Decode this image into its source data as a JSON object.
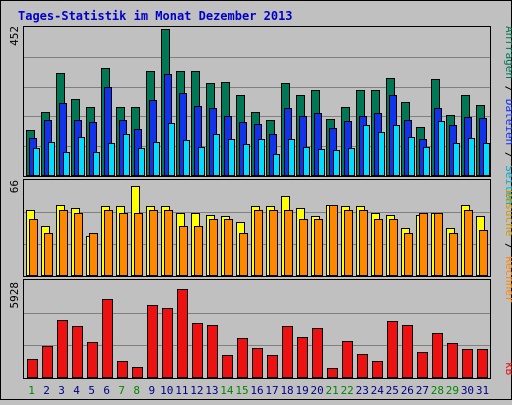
{
  "title": "Tages-Statistik im Monat Dezember 2013",
  "right_labels": {
    "anfragen": "Anfragen",
    "dateien": "Dateien",
    "seiten": "Seiten",
    "besuche": "Besuche",
    "rechner": "Rechner",
    "kb": "kB",
    "sep": " / "
  },
  "colors": {
    "background": "#c0c0c0",
    "title": "#0000cc",
    "anfragen": "#007755",
    "dateien": "#1133ee",
    "seiten": "#00ddff",
    "besuche": "#ffff00",
    "rechner": "#ff8800",
    "kb": "#ee1111",
    "weekend_label": "#008800",
    "weekday_label": "#000088"
  },
  "chart_data": [
    {
      "type": "bar",
      "title": "Tages-Statistik im Monat Dezember 2013",
      "panel": "top",
      "y_tick_label": "452",
      "ylim": [
        0,
        452
      ],
      "categories": [
        "1",
        "2",
        "3",
        "4",
        "5",
        "6",
        "7",
        "8",
        "9",
        "10",
        "11",
        "12",
        "13",
        "14",
        "15",
        "16",
        "17",
        "18",
        "19",
        "20",
        "21",
        "22",
        "23",
        "24",
        "25",
        "26",
        "27",
        "28",
        "29",
        "30",
        "31"
      ],
      "weekend_days": [
        "1",
        "7",
        "8",
        "14",
        "15",
        "21",
        "22",
        "28",
        "29"
      ],
      "series": [
        {
          "name": "Anfragen",
          "color": "#007755",
          "values": [
            140,
            196,
            318,
            236,
            212,
            332,
            212,
            212,
            322,
            452,
            322,
            322,
            286,
            289,
            249,
            196,
            173,
            286,
            249,
            264,
            175,
            212,
            264,
            264,
            302,
            226,
            151,
            299,
            187,
            249,
            219
          ]
        },
        {
          "name": "Dateien",
          "color": "#1133ee",
          "values": [
            116,
            173,
            223,
            173,
            166,
            273,
            173,
            145,
            233,
            314,
            256,
            216,
            209,
            186,
            166,
            160,
            128,
            209,
            184,
            193,
            148,
            170,
            186,
            193,
            250,
            173,
            113,
            209,
            158,
            180,
            178
          ]
        },
        {
          "name": "Seiten",
          "color": "#00ddff",
          "values": [
            85,
            105,
            75,
            120,
            75,
            100,
            128,
            85,
            105,
            163,
            110,
            88,
            128,
            113,
            98,
            113,
            68,
            113,
            90,
            83,
            80,
            85,
            156,
            135,
            158,
            120,
            90,
            168,
            102,
            118,
            102
          ]
        }
      ]
    },
    {
      "type": "bar",
      "panel": "middle",
      "y_tick_label": "66",
      "ylim": [
        0,
        66
      ],
      "categories": [
        "1",
        "2",
        "3",
        "4",
        "5",
        "6",
        "7",
        "8",
        "9",
        "10",
        "11",
        "12",
        "13",
        "14",
        "15",
        "16",
        "17",
        "18",
        "19",
        "20",
        "21",
        "22",
        "23",
        "24",
        "25",
        "26",
        "27",
        "28",
        "29",
        "30",
        "31"
      ],
      "series": [
        {
          "name": "Besuche",
          "color": "#ffff00",
          "values": [
            46,
            35,
            50,
            48,
            28,
            49,
            49,
            63,
            49,
            49,
            44,
            44,
            43,
            42,
            38,
            49,
            49,
            56,
            48,
            42,
            50,
            49,
            49,
            44,
            43,
            34,
            43,
            44,
            34,
            50,
            42
          ]
        },
        {
          "name": "Rechner",
          "color": "#ff8800",
          "values": [
            40,
            30,
            46,
            44,
            30,
            46,
            44,
            44,
            46,
            46,
            35,
            35,
            40,
            40,
            30,
            46,
            46,
            46,
            40,
            40,
            50,
            46,
            46,
            40,
            40,
            30,
            44,
            44,
            30,
            46,
            32
          ]
        }
      ]
    },
    {
      "type": "bar",
      "panel": "bottom",
      "y_tick_label": "5928",
      "ylim": [
        0,
        5928
      ],
      "categories": [
        "1",
        "2",
        "3",
        "4",
        "5",
        "6",
        "7",
        "8",
        "9",
        "10",
        "11",
        "12",
        "13",
        "14",
        "15",
        "16",
        "17",
        "18",
        "19",
        "20",
        "21",
        "22",
        "23",
        "24",
        "25",
        "26",
        "27",
        "28",
        "29",
        "30",
        "31"
      ],
      "series": [
        {
          "name": "kB",
          "color": "#ee1111",
          "values": [
            1200,
            2000,
            3600,
            3200,
            2200,
            4900,
            1080,
            650,
            4500,
            4300,
            5500,
            3400,
            3300,
            1400,
            2500,
            1850,
            1450,
            3200,
            2550,
            3100,
            590,
            2300,
            1500,
            1080,
            3500,
            3300,
            1600,
            2750,
            2150,
            1790,
            1790
          ]
        }
      ]
    }
  ]
}
